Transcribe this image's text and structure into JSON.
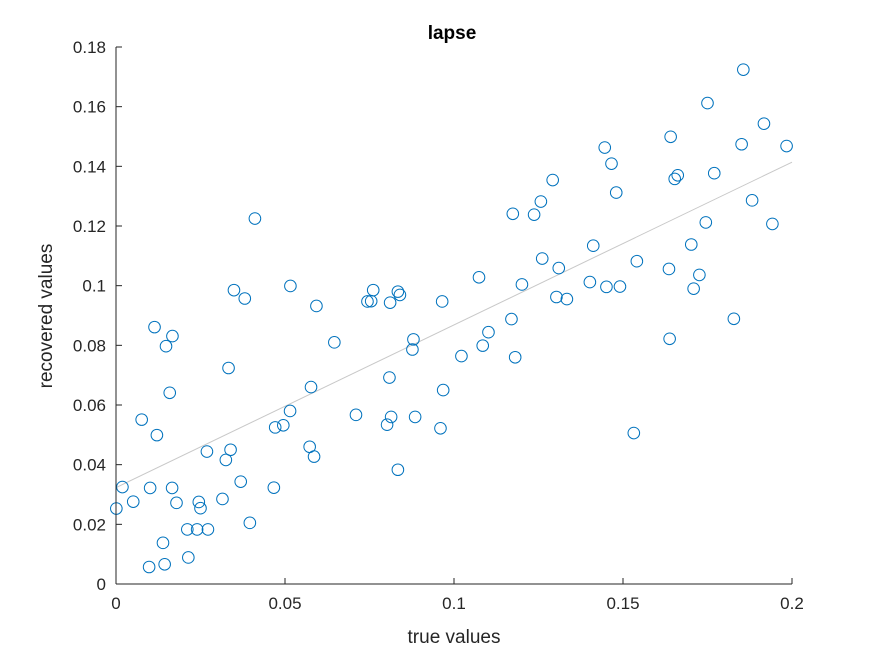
{
  "chart_data": {
    "type": "scatter",
    "title": "lapse",
    "xlabel": "true values",
    "ylabel": "recovered values",
    "xlim": [
      0,
      0.2
    ],
    "ylim": [
      0,
      0.18
    ],
    "xticks": [
      0,
      0.05,
      0.1,
      0.15,
      0.2
    ],
    "xtick_labels": [
      "0",
      "0.05",
      "0.1",
      "0.15",
      "0.2"
    ],
    "yticks": [
      0,
      0.02,
      0.04,
      0.06,
      0.08,
      0.1,
      0.12,
      0.14,
      0.16,
      0.18
    ],
    "ytick_labels": [
      "0",
      "0.02",
      "0.04",
      "0.06",
      "0.08",
      "0.1",
      "0.12",
      "0.14",
      "0.16",
      "0.18"
    ],
    "grid": false,
    "marker_color": "#0072BD",
    "fit_line_color": "#c8c8c8",
    "fit_line": [
      [
        0,
        0.0323
      ],
      [
        0.2,
        0.1414
      ]
    ],
    "points": [
      [
        0.0001,
        0.0253
      ],
      [
        0.0019,
        0.0325
      ],
      [
        0.0051,
        0.0276
      ],
      [
        0.0076,
        0.0551
      ],
      [
        0.0098,
        0.0057
      ],
      [
        0.0101,
        0.0322
      ],
      [
        0.0114,
        0.0861
      ],
      [
        0.0121,
        0.0499
      ],
      [
        0.0139,
        0.0138
      ],
      [
        0.0144,
        0.0066
      ],
      [
        0.0148,
        0.0797
      ],
      [
        0.0159,
        0.0641
      ],
      [
        0.0166,
        0.0322
      ],
      [
        0.0167,
        0.0831
      ],
      [
        0.0179,
        0.0272
      ],
      [
        0.0211,
        0.0183
      ],
      [
        0.0214,
        0.0089
      ],
      [
        0.024,
        0.0183
      ],
      [
        0.0245,
        0.0275
      ],
      [
        0.025,
        0.0254
      ],
      [
        0.0269,
        0.0444
      ],
      [
        0.0272,
        0.0183
      ],
      [
        0.0315,
        0.0285
      ],
      [
        0.0325,
        0.0416
      ],
      [
        0.0333,
        0.0724
      ],
      [
        0.0339,
        0.045
      ],
      [
        0.0349,
        0.0985
      ],
      [
        0.0369,
        0.0343
      ],
      [
        0.0381,
        0.0957
      ],
      [
        0.0396,
        0.0205
      ],
      [
        0.0411,
        0.1225
      ],
      [
        0.0467,
        0.0323
      ],
      [
        0.0471,
        0.0525
      ],
      [
        0.0495,
        0.0532
      ],
      [
        0.0515,
        0.058
      ],
      [
        0.0516,
        0.0999
      ],
      [
        0.0573,
        0.046
      ],
      [
        0.0577,
        0.066
      ],
      [
        0.0586,
        0.0427
      ],
      [
        0.0593,
        0.0932
      ],
      [
        0.0646,
        0.081
      ],
      [
        0.071,
        0.0567
      ],
      [
        0.0744,
        0.0947
      ],
      [
        0.0755,
        0.0948
      ],
      [
        0.0761,
        0.0985
      ],
      [
        0.0802,
        0.0534
      ],
      [
        0.0809,
        0.0692
      ],
      [
        0.0811,
        0.0943
      ],
      [
        0.0814,
        0.056
      ],
      [
        0.0834,
        0.0383
      ],
      [
        0.0834,
        0.098
      ],
      [
        0.084,
        0.0969
      ],
      [
        0.0877,
        0.0786
      ],
      [
        0.088,
        0.082
      ],
      [
        0.0885,
        0.056
      ],
      [
        0.096,
        0.0522
      ],
      [
        0.0965,
        0.0947
      ],
      [
        0.0968,
        0.065
      ],
      [
        0.1022,
        0.0764
      ],
      [
        0.1074,
        0.1028
      ],
      [
        0.1085,
        0.0799
      ],
      [
        0.1102,
        0.0844
      ],
      [
        0.117,
        0.0888
      ],
      [
        0.1174,
        0.1241
      ],
      [
        0.1181,
        0.076
      ],
      [
        0.1201,
        0.1004
      ],
      [
        0.1237,
        0.1238
      ],
      [
        0.1257,
        0.1282
      ],
      [
        0.1261,
        0.1091
      ],
      [
        0.1292,
        0.1354
      ],
      [
        0.1303,
        0.0962
      ],
      [
        0.131,
        0.1059
      ],
      [
        0.1334,
        0.0955
      ],
      [
        0.1402,
        0.1012
      ],
      [
        0.1412,
        0.1134
      ],
      [
        0.1446,
        0.1463
      ],
      [
        0.1451,
        0.0996
      ],
      [
        0.1466,
        0.1409
      ],
      [
        0.148,
        0.1312
      ],
      [
        0.1491,
        0.0997
      ],
      [
        0.1532,
        0.0506
      ],
      [
        0.1541,
        0.1082
      ],
      [
        0.1636,
        0.1056
      ],
      [
        0.1638,
        0.0822
      ],
      [
        0.1641,
        0.1499
      ],
      [
        0.1653,
        0.1358
      ],
      [
        0.1662,
        0.137
      ],
      [
        0.1702,
        0.1138
      ],
      [
        0.1709,
        0.099
      ],
      [
        0.1726,
        0.1036
      ],
      [
        0.1745,
        0.1212
      ],
      [
        0.175,
        0.1612
      ],
      [
        0.177,
        0.1377
      ],
      [
        0.1828,
        0.0889
      ],
      [
        0.1851,
        0.1474
      ],
      [
        0.1856,
        0.1724
      ],
      [
        0.1882,
        0.1286
      ],
      [
        0.1917,
        0.1543
      ],
      [
        0.1942,
        0.1207
      ],
      [
        0.1984,
        0.1468
      ]
    ]
  }
}
